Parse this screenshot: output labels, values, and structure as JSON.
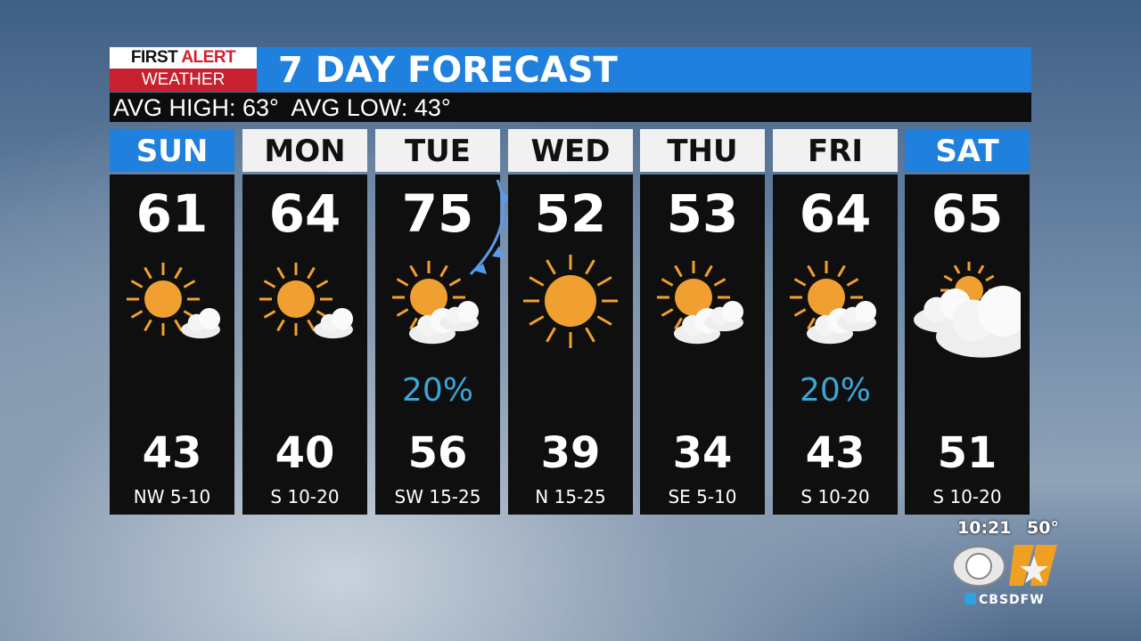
{
  "logo": {
    "line1a": "FIRST",
    "line1b": "ALERT",
    "line2": "WEATHER"
  },
  "title": "7 DAY FORECAST",
  "averages": {
    "text": "AVG HIGH: 63°  AVG LOW: 43°"
  },
  "colors": {
    "accent_blue": "#1f80dd",
    "logo_red": "#c8202f",
    "precip_blue": "#3aa6d8",
    "sun": "#f0a030"
  },
  "days": [
    {
      "day": "SUN",
      "high": "61",
      "low": "43",
      "wind": "NW 5-10",
      "precip": "",
      "icon": "sun-small-cloud",
      "highlight": true
    },
    {
      "day": "MON",
      "high": "64",
      "low": "40",
      "wind": "S 10-20",
      "precip": "",
      "icon": "sun-small-cloud",
      "highlight": false
    },
    {
      "day": "TUE",
      "high": "75",
      "low": "56",
      "wind": "SW 15-25",
      "precip": "20%",
      "icon": "sun-cloud",
      "highlight": false
    },
    {
      "day": "WED",
      "high": "52",
      "low": "39",
      "wind": "N 15-25",
      "precip": "",
      "icon": "sun",
      "highlight": false
    },
    {
      "day": "THU",
      "high": "53",
      "low": "34",
      "wind": "SE 5-10",
      "precip": "",
      "icon": "sun-cloud",
      "highlight": false
    },
    {
      "day": "FRI",
      "high": "64",
      "low": "43",
      "wind": "S 10-20",
      "precip": "20%",
      "icon": "sun-cloud",
      "highlight": false
    },
    {
      "day": "SAT",
      "high": "65",
      "low": "51",
      "wind": "S 10-20",
      "precip": "",
      "icon": "mostly-cloudy",
      "highlight": true
    }
  ],
  "bug": {
    "time": "10:21",
    "temp": "50°",
    "station": "CBS 11",
    "handle": "CBSDFW"
  }
}
